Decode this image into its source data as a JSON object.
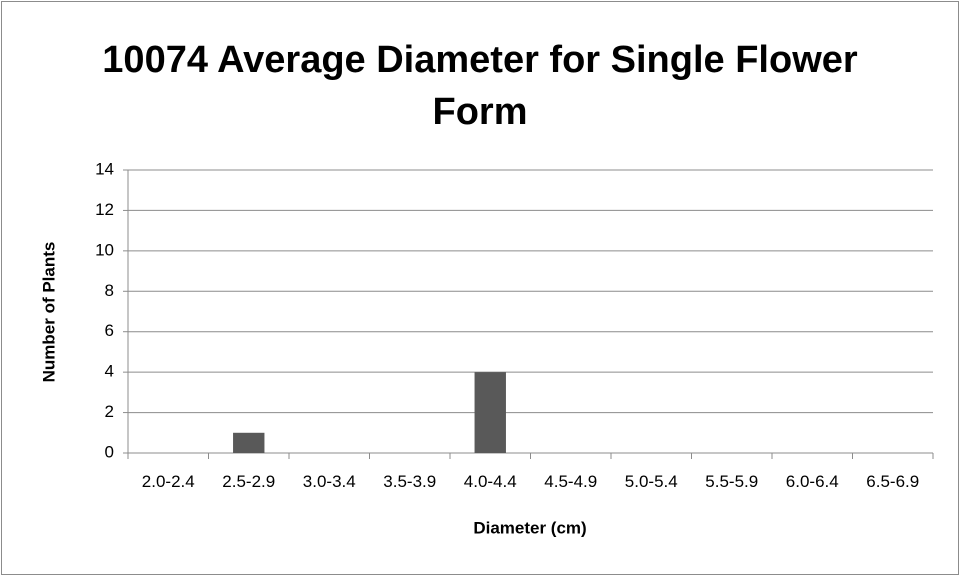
{
  "chart_data": {
    "type": "bar",
    "title": "10074 Average Diameter for Single Flower Form",
    "categories": [
      "2.0-2.4",
      "2.5-2.9",
      "3.0-3.4",
      "3.5-3.9",
      "4.0-4.4",
      "4.5-4.9",
      "5.0-5.4",
      "5.5-5.9",
      "6.0-6.4",
      "6.5-6.9"
    ],
    "values": [
      0,
      1,
      0,
      0,
      4,
      0,
      0,
      0,
      0,
      0
    ],
    "color": "#595959",
    "x_label": "Diameter (cm)",
    "y_label": "Number of Plants",
    "ylim": [
      0,
      14
    ],
    "yticks": [
      0,
      2,
      4,
      6,
      8,
      10,
      12,
      14
    ],
    "grid": true
  }
}
